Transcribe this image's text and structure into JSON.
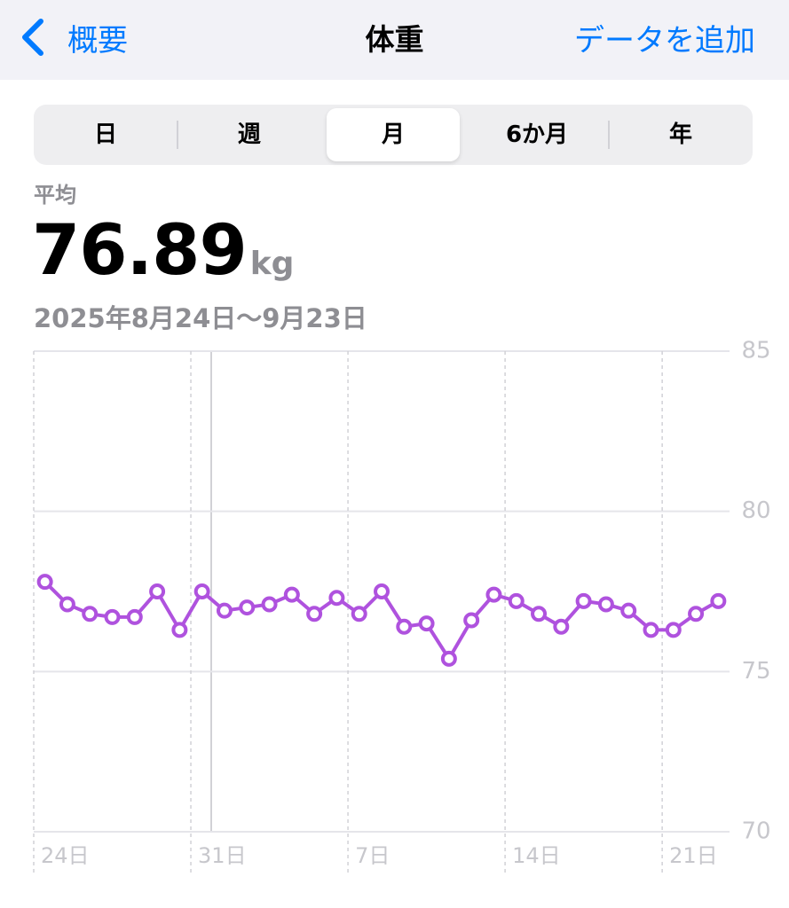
{
  "nav": {
    "back": "概要",
    "title": "体重",
    "action": "データを追加"
  },
  "segments": {
    "items": [
      "日",
      "週",
      "月",
      "6か月",
      "年"
    ],
    "selected": 2
  },
  "summary": {
    "label": "平均",
    "value": "76.89",
    "unit": "kg",
    "range": "2025年8月24日～9月23日"
  },
  "chart_data": {
    "type": "line",
    "categories": [
      "24日",
      null,
      null,
      null,
      null,
      null,
      null,
      "31日",
      null,
      null,
      null,
      null,
      null,
      null,
      "7日",
      null,
      null,
      null,
      null,
      null,
      null,
      "14日",
      null,
      null,
      null,
      null,
      null,
      null,
      "21日",
      null,
      null
    ],
    "series": [
      {
        "name": "体重",
        "color": "#af52de",
        "values": [
          77.8,
          77.1,
          76.8,
          76.7,
          76.7,
          77.5,
          76.3,
          77.5,
          76.9,
          77.0,
          77.1,
          77.4,
          76.8,
          77.3,
          76.8,
          77.5,
          76.4,
          76.5,
          75.4,
          76.6,
          77.4,
          77.2,
          76.8,
          76.4,
          77.2,
          77.1,
          76.9,
          76.3,
          76.3,
          76.8,
          77.2
        ]
      }
    ],
    "ylim": [
      70,
      85
    ],
    "yticks": [
      70,
      75,
      80,
      85
    ],
    "grid": true
  }
}
